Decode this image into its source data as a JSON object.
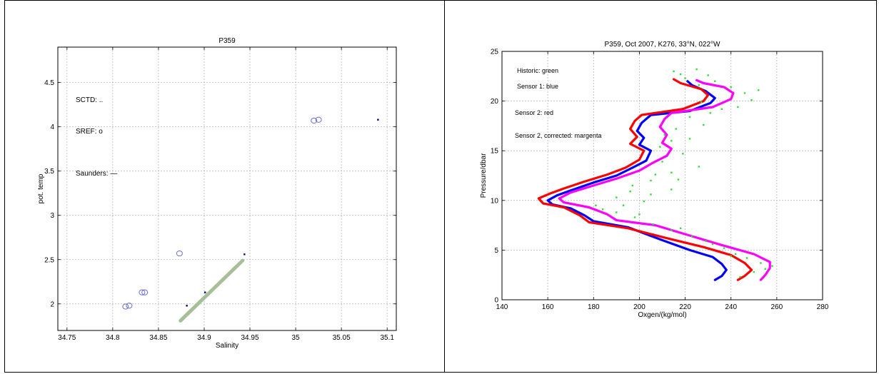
{
  "chart_data": [
    {
      "type": "scatter",
      "title": "P359",
      "xlabel": "Salinity",
      "ylabel": "pot. temp",
      "xlim": [
        34.74,
        35.11
      ],
      "ylim": [
        1.7,
        4.9
      ],
      "xticks": [
        34.75,
        34.8,
        34.85,
        34.9,
        34.95,
        35,
        35.05,
        35.1
      ],
      "xtick_labels": [
        "34.75",
        "34.8",
        "34.85",
        "34.9",
        "34.95",
        "35",
        "35.05",
        "35.1"
      ],
      "yticks": [
        2,
        2.5,
        3,
        3.5,
        4,
        4.5
      ],
      "ytick_labels": [
        "2",
        "2.5",
        "3",
        "3.5",
        "4",
        "4.5"
      ],
      "grid": true,
      "annotations": [
        "SCTD: ..",
        "SREF: o",
        "Saunders: —"
      ],
      "series": [
        {
          "name": "SCTD",
          "marker": "dot",
          "color": "#00008b",
          "points": [
            [
              34.881,
              1.98
            ],
            [
              34.901,
              2.13
            ],
            [
              34.944,
              2.56
            ],
            [
              35.09,
              4.08
            ]
          ]
        },
        {
          "name": "SREF",
          "marker": "circle",
          "color": "#6b6bd1",
          "points": [
            [
              34.814,
              1.97
            ],
            [
              34.818,
              1.98
            ],
            [
              34.832,
              2.13
            ],
            [
              34.835,
              2.13
            ],
            [
              34.873,
              2.57
            ],
            [
              35.02,
              4.07
            ],
            [
              35.025,
              4.08
            ]
          ]
        },
        {
          "name": "Saunders",
          "marker": "line",
          "color": "#a7bf98",
          "points": [
            [
              34.874,
              1.81
            ],
            [
              34.942,
              2.49
            ]
          ]
        }
      ]
    },
    {
      "type": "line",
      "title": "P359, Oct 2007, K276, 33°N, 022°W",
      "xlabel": "Oxgen/(kg/mol)",
      "ylabel": "Pressure/dbar",
      "xlim": [
        140,
        280
      ],
      "ylim": [
        0,
        25
      ],
      "xticks": [
        140,
        160,
        180,
        200,
        220,
        240,
        260,
        280
      ],
      "xtick_labels": [
        "140",
        "160",
        "180",
        "200",
        "220",
        "240",
        "260",
        "280"
      ],
      "yticks": [
        0,
        5,
        10,
        15,
        20,
        25
      ],
      "ytick_labels": [
        "0",
        "5",
        "10",
        "15",
        "20",
        "25"
      ],
      "grid": true,
      "annotations": [
        "Historic: green",
        "Sensor 1: blue",
        "Sensor 2: red",
        "Sensor 2, corrected: margenta"
      ],
      "series": [
        {
          "name": "Sensor 1",
          "color": "#0000ff",
          "points": [
            [
              233,
              2
            ],
            [
              236,
              2.4
            ],
            [
              238,
              3
            ],
            [
              236,
              3.6
            ],
            [
              232,
              4.3
            ],
            [
              222,
              5
            ],
            [
              210,
              6
            ],
            [
              195,
              7.3
            ],
            [
              180,
              7.9
            ],
            [
              176,
              8.5
            ],
            [
              170,
              9.2
            ],
            [
              162,
              9.6
            ],
            [
              160,
              10
            ],
            [
              164,
              10.5
            ],
            [
              170,
              11
            ],
            [
              180,
              11.8
            ],
            [
              190,
              12.5
            ],
            [
              197,
              13.3
            ],
            [
              203,
              14
            ],
            [
              205,
              15
            ],
            [
              200,
              15.6
            ],
            [
              202,
              16.3
            ],
            [
              199,
              17
            ],
            [
              201,
              17.8
            ],
            [
              205,
              18.6
            ],
            [
              222,
              19
            ],
            [
              231,
              19.8
            ],
            [
              233,
              20.3
            ],
            [
              229,
              21
            ],
            [
              223,
              21.6
            ],
            [
              221,
              22
            ]
          ]
        },
        {
          "name": "Sensor 2",
          "color": "#ff0000",
          "points": [
            [
              243,
              2
            ],
            [
              246,
              2.4
            ],
            [
              249,
              3
            ],
            [
              246,
              3.7
            ],
            [
              240,
              4.5
            ],
            [
              228,
              5.3
            ],
            [
              212,
              6.2
            ],
            [
              195,
              7.2
            ],
            [
              178,
              7.8
            ],
            [
              174,
              8.5
            ],
            [
              167,
              9.3
            ],
            [
              158,
              9.7
            ],
            [
              156,
              10.2
            ],
            [
              161,
              10.7
            ],
            [
              167,
              11.2
            ],
            [
              176,
              11.9
            ],
            [
              186,
              12.6
            ],
            [
              194,
              13.3
            ],
            [
              200,
              14.1
            ],
            [
              202,
              15
            ],
            [
              196,
              15.7
            ],
            [
              199,
              16.4
            ],
            [
              196,
              17.2
            ],
            [
              198,
              18
            ],
            [
              201,
              18.6
            ],
            [
              219,
              19.2
            ],
            [
              228,
              20
            ],
            [
              230,
              20.6
            ],
            [
              227,
              21.2
            ],
            [
              218,
              21.8
            ],
            [
              215,
              22.2
            ]
          ]
        },
        {
          "name": "Sensor 2, corrected",
          "color": "#ff00ff",
          "points": [
            [
              253,
              2
            ],
            [
              255,
              2.5
            ],
            [
              257,
              3.2
            ],
            [
              257,
              3.8
            ],
            [
              250,
              4.6
            ],
            [
              236,
              5.5
            ],
            [
              220,
              6.6
            ],
            [
              207,
              7.5
            ],
            [
              190,
              8
            ],
            [
              186,
              8.6
            ],
            [
              178,
              9.3
            ],
            [
              167,
              9.8
            ],
            [
              165,
              10.2
            ],
            [
              170,
              10.8
            ],
            [
              180,
              11.5
            ],
            [
              190,
              12.2
            ],
            [
              200,
              13
            ],
            [
              206,
              13.8
            ],
            [
              212,
              14.5
            ],
            [
              214,
              15.2
            ],
            [
              210,
              15.8
            ],
            [
              212,
              16.6
            ],
            [
              209,
              17.4
            ],
            [
              211,
              18.2
            ],
            [
              214,
              18.8
            ],
            [
              232,
              19.4
            ],
            [
              240,
              20.2
            ],
            [
              241,
              20.8
            ],
            [
              237,
              21.4
            ],
            [
              228,
              21.8
            ],
            [
              225,
              22.1
            ]
          ]
        },
        {
          "name": "Historic",
          "color": "#33dd33",
          "marker": "dot",
          "points": [
            [
              244,
              2.3
            ],
            [
              250,
              2.8
            ],
            [
              255,
              3.1
            ],
            [
              258,
              3.4
            ],
            [
              253,
              3.7
            ],
            [
              247,
              4.2
            ],
            [
              242,
              4.6
            ],
            [
              237,
              5.2
            ],
            [
              229,
              5.9
            ],
            [
              223,
              6.4
            ],
            [
              214,
              7
            ],
            [
              206,
              7.6
            ],
            [
              198,
              8.3
            ],
            [
              190,
              8.8
            ],
            [
              184,
              9.1
            ],
            [
              193,
              9.5
            ],
            [
              202,
              9.9
            ],
            [
              190,
              10.3
            ],
            [
              205,
              10.6
            ],
            [
              214,
              11.1
            ],
            [
              197,
              11.5
            ],
            [
              205,
              12
            ],
            [
              217,
              12.1
            ],
            [
              214,
              12.8
            ],
            [
              226,
              13.4
            ],
            [
              210,
              13.9
            ],
            [
              219,
              14.7
            ],
            [
              209,
              15.4
            ],
            [
              214,
              16
            ],
            [
              222,
              16.2
            ],
            [
              216,
              17.2
            ],
            [
              228,
              17.6
            ],
            [
              222,
              18.4
            ],
            [
              231,
              18.8
            ],
            [
              243,
              19.4
            ],
            [
              227,
              19.9
            ],
            [
              249,
              20.1
            ],
            [
              246,
              20.8
            ],
            [
              252,
              21.1
            ],
            [
              226,
              21.6
            ],
            [
              233,
              22
            ],
            [
              220,
              22.3
            ],
            [
              230,
              22.6
            ],
            [
              215,
              23
            ],
            [
              225,
              23.2
            ],
            [
              218,
              22.7
            ],
            [
              236,
              19.2
            ],
            [
              240,
              21.4
            ],
            [
              211,
              16.6
            ],
            [
              207,
              12.6
            ],
            [
              196,
              10.9
            ],
            [
              181,
              9.5
            ],
            [
              200,
              8.6
            ],
            [
              218,
              7.2
            ],
            [
              232,
              5.6
            ],
            [
              240,
              4.4
            ]
          ]
        }
      ]
    }
  ]
}
